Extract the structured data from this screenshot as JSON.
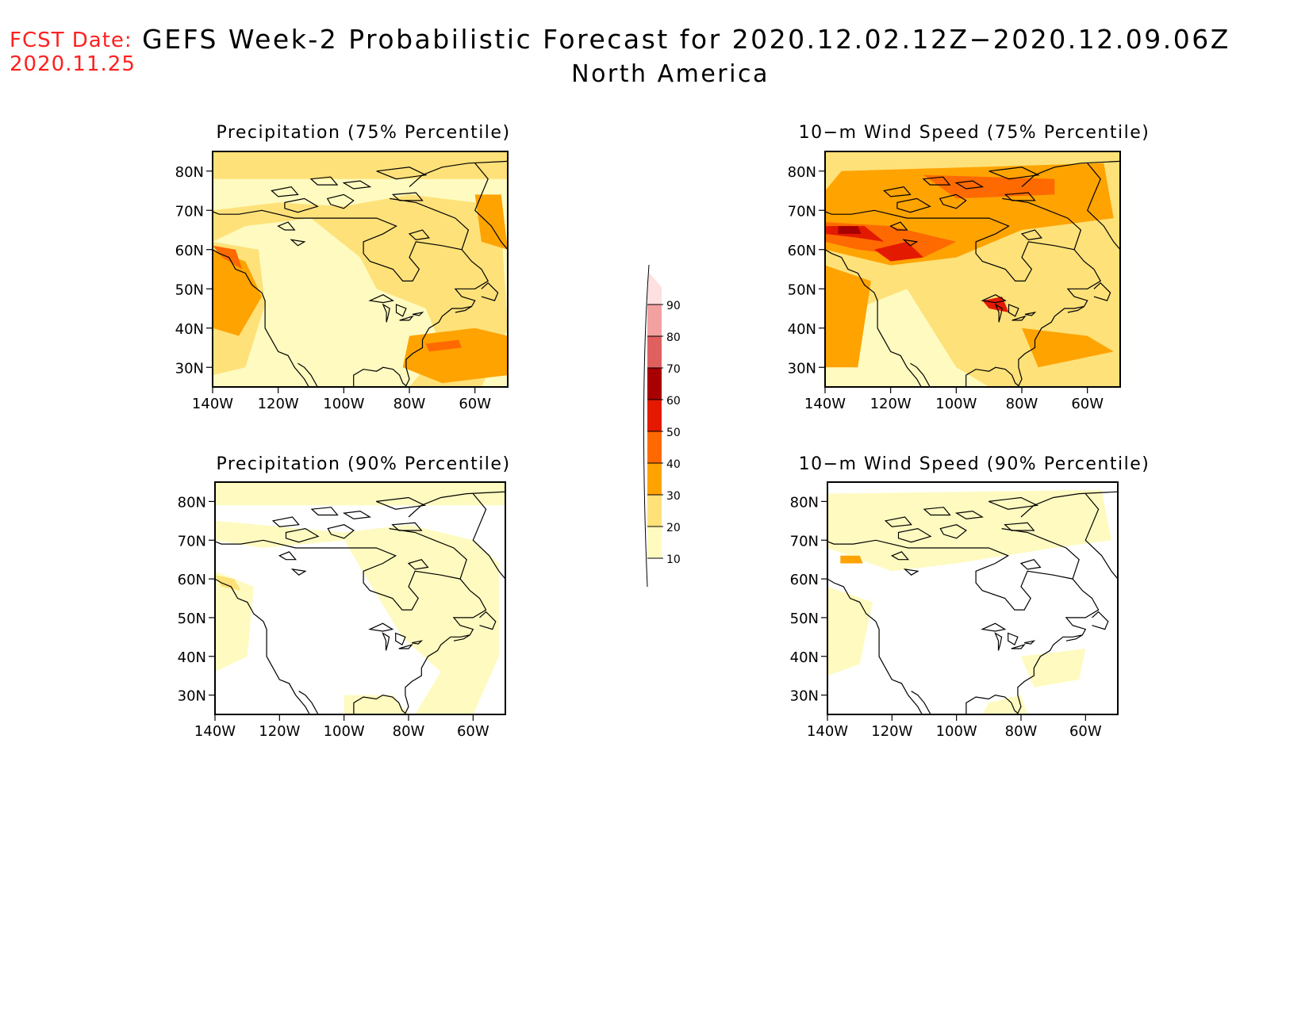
{
  "header": {
    "fcst_label": "FCST Date:",
    "fcst_date": "2020.11.25",
    "title": "GEFS Week-2 Probabilistic Forecast for 2020.12.02.12Z−2020.12.09.06Z",
    "region": "North America"
  },
  "axes": {
    "lat_labels": [
      "80N",
      "70N",
      "60N",
      "50N",
      "40N",
      "30N"
    ],
    "lon_labels": [
      "140W",
      "120W",
      "100W",
      "80W",
      "60W"
    ]
  },
  "panels": [
    {
      "id": "precip-75",
      "title": "Precipitation (75% Percentile)"
    },
    {
      "id": "wind-75",
      "title": "10−m Wind Speed (75% Percentile)"
    },
    {
      "id": "precip-90",
      "title": "Precipitation (90% Percentile)"
    },
    {
      "id": "wind-90",
      "title": "10−m Wind Speed (90% Percentile)"
    }
  ],
  "colorbar": {
    "levels": [
      "10",
      "20",
      "30",
      "40",
      "50",
      "60",
      "70",
      "80",
      "90"
    ],
    "colors": [
      "#fffbc0",
      "#ffe17a",
      "#ffa300",
      "#ff6a00",
      "#e31a00",
      "#a80000",
      "#e06060",
      "#f2a0a0",
      "#ffe0e0"
    ]
  }
}
